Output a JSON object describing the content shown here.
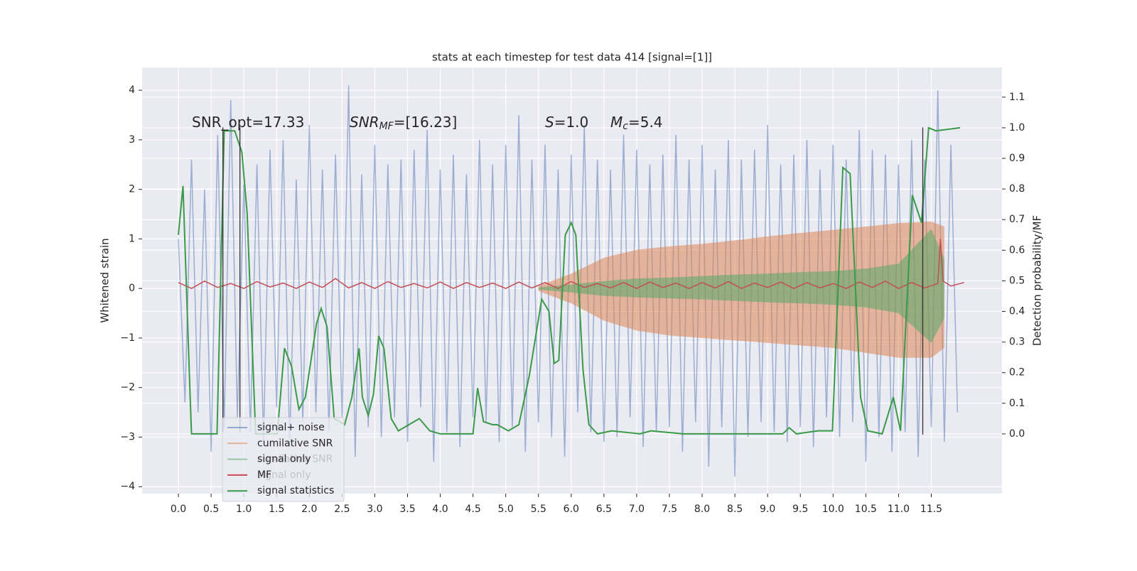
{
  "chart_data": {
    "type": "line",
    "title": "stats at each timestep for test data 414 [signal=[1]]",
    "y_label": "Whitened strain",
    "y2_label": "Detection probability/MF",
    "annotations": [
      [
        "SNR_opt=17.33"
      ],
      [
        "SNR",
        "MF",
        "=[16.23]"
      ],
      [
        "S",
        "=1.0"
      ],
      [
        "M",
        "c",
        "=5.4"
      ]
    ],
    "xlim": [
      -0.554,
      12.58
    ],
    "ylim": [
      -4.14,
      4.46
    ],
    "y2lim": [
      -0.195,
      1.197
    ],
    "grid": true,
    "legend": "lower left",
    "xticks": [
      {
        "value": 0,
        "label": "0.0"
      },
      0.5,
      {
        "value": 1,
        "label": "1.0"
      },
      1.5,
      {
        "value": 2,
        "label": "2.0"
      },
      2.5,
      {
        "value": 3,
        "label": "3.0"
      },
      3.5,
      {
        "value": 4,
        "label": "4.0"
      },
      4.5,
      {
        "value": 5,
        "label": "5.0"
      },
      5.5,
      {
        "value": 6,
        "label": "6.0"
      },
      6.5,
      {
        "value": 7,
        "label": "7.0"
      },
      7.5,
      {
        "value": 8,
        "label": "8.0"
      },
      8.5,
      {
        "value": 9,
        "label": "9.0"
      },
      9.5,
      {
        "value": 10,
        "label": "10.0"
      },
      10.5,
      {
        "value": 11,
        "label": "11.0"
      },
      11.5
    ],
    "yticks": [
      {
        "value": -4,
        "label": "−4"
      },
      {
        "value": -3,
        "label": "−3"
      },
      {
        "value": -2,
        "label": "−2"
      },
      {
        "value": -1,
        "label": "−1"
      },
      0,
      1,
      2,
      3,
      4
    ],
    "y2ticks": [
      {
        "value": 0,
        "label": "0.0"
      },
      0.1,
      0.2,
      0.3,
      0.4,
      0.5,
      0.6,
      0.7,
      0.8,
      0.9,
      {
        "value": 1,
        "label": "1.0"
      },
      1.1
    ],
    "ghost_legend": [
      "cumilative SNR",
      "signal only"
    ],
    "markers": [
      {
        "x": 0.68,
        "ymin": -2.9,
        "ymax": 3.25
      },
      {
        "x": 0.94,
        "ymin": -2.9,
        "ymax": 3.25
      },
      {
        "x": 11.37,
        "ymin": -2.95,
        "ymax": 3.25
      }
    ],
    "series": [
      {
        "name": "signal+ noise",
        "kind": "line",
        "color": "#4c72b0",
        "x": [
          0,
          0.1,
          0.2,
          0.3,
          0.4,
          0.5,
          0.6,
          0.7,
          0.8,
          0.9,
          1,
          1.1,
          1.2,
          1.3,
          1.4,
          1.5,
          1.6,
          1.7,
          1.8,
          1.9,
          2,
          2.1,
          2.2,
          2.3,
          2.4,
          2.5,
          2.6,
          2.7,
          2.8,
          2.9,
          3,
          3.1,
          3.2,
          3.3,
          3.4,
          3.5,
          3.6,
          3.7,
          3.8,
          3.9,
          4,
          4.1,
          4.2,
          4.3,
          4.4,
          4.5,
          4.6,
          4.7,
          4.8,
          4.9,
          5,
          5.1,
          5.2,
          5.3,
          5.4,
          5.5,
          5.6,
          5.7,
          5.8,
          5.9,
          6,
          6.1,
          6.2,
          6.3,
          6.4,
          6.5,
          6.6,
          6.7,
          6.8,
          6.9,
          7,
          7.1,
          7.2,
          7.3,
          7.4,
          7.5,
          7.6,
          7.7,
          7.8,
          7.9,
          8,
          8.1,
          8.2,
          8.3,
          8.4,
          8.5,
          8.6,
          8.7,
          8.8,
          8.9,
          9,
          9.1,
          9.2,
          9.3,
          9.4,
          9.5,
          9.6,
          9.7,
          9.8,
          9.9,
          10,
          10.1,
          10.2,
          10.3,
          10.4,
          10.5,
          10.6,
          10.7,
          10.8,
          10.9,
          11,
          11.1,
          11.2,
          11.3,
          11.4,
          11.5,
          11.6,
          11.7,
          11.8,
          11.9
        ],
        "values": [
          1.0,
          -2.3,
          2.6,
          -2.5,
          2.0,
          -3.3,
          3.1,
          -2.8,
          3.8,
          -2.6,
          2.1,
          -2.9,
          2.5,
          -3.1,
          2.8,
          -2.4,
          3.0,
          -3.2,
          2.2,
          -2.7,
          3.3,
          -2.5,
          2.4,
          -2.9,
          2.7,
          -2.6,
          4.1,
          -3.4,
          2.3,
          -2.8,
          2.9,
          -3.0,
          2.5,
          -2.6,
          2.6,
          -3.1,
          2.8,
          -2.4,
          3.2,
          -3.5,
          2.4,
          -2.9,
          2.7,
          -3.2,
          2.3,
          -2.6,
          3.0,
          -2.7,
          2.5,
          -3.1,
          2.9,
          -2.8,
          3.5,
          -3.3,
          2.6,
          -2.7,
          2.9,
          -3.0,
          2.4,
          -3.4,
          2.7,
          -2.5,
          3.3,
          -2.9,
          2.6,
          -3.1,
          2.4,
          -3.0,
          3.1,
          -2.6,
          2.8,
          -3.2,
          2.5,
          -2.9,
          2.7,
          -2.8,
          3.1,
          -3.3,
          2.6,
          -2.7,
          2.9,
          -3.6,
          2.4,
          -2.8,
          3.0,
          -3.8,
          2.6,
          -3.0,
          2.8,
          -2.7,
          3.3,
          -2.9,
          2.5,
          -3.1,
          2.7,
          -2.8,
          3.0,
          -3.2,
          2.4,
          -2.6,
          2.9,
          -3.0,
          2.6,
          -2.7,
          3.2,
          -3.5,
          2.8,
          -3.0,
          2.7,
          -3.3,
          2.5,
          -2.9,
          3.0,
          -3.4,
          2.6,
          -2.8,
          4.0,
          -3.1,
          2.9,
          -2.5
        ]
      },
      {
        "name": "cumilative SNR",
        "kind": "band",
        "color": "#dd8452",
        "x": [
          5.5,
          6,
          6.5,
          7,
          7.5,
          8,
          8.5,
          9,
          9.5,
          10,
          10.5,
          11,
          11.5,
          11.7
        ],
        "values": [
          0.05,
          0.3,
          0.62,
          0.78,
          0.85,
          0.9,
          0.97,
          1.05,
          1.12,
          1.18,
          1.25,
          1.32,
          1.35,
          1.25
        ],
        "lower": [
          -0.05,
          -0.3,
          -0.65,
          -0.85,
          -0.95,
          -1.0,
          -1.05,
          -1.1,
          -1.15,
          -1.2,
          -1.3,
          -1.4,
          -1.4,
          -1.2
        ]
      },
      {
        "name": "signal only",
        "kind": "band",
        "color": "#55a868",
        "x": [
          5.5,
          6,
          6.5,
          7,
          7.5,
          8,
          8.5,
          9,
          9.5,
          10,
          10.5,
          11,
          11.5,
          11.7
        ],
        "values": [
          0.02,
          0.08,
          0.15,
          0.2,
          0.22,
          0.25,
          0.28,
          0.3,
          0.33,
          0.35,
          0.4,
          0.5,
          1.2,
          0.6
        ],
        "lower": [
          -0.02,
          -0.08,
          -0.15,
          -0.18,
          -0.2,
          -0.22,
          -0.25,
          -0.28,
          -0.3,
          -0.33,
          -0.38,
          -0.5,
          -1.1,
          -0.6
        ]
      },
      {
        "name": "MF",
        "kind": "line",
        "color": "#c44e52",
        "x": [
          0,
          0.2,
          0.4,
          0.6,
          0.8,
          1,
          1.2,
          1.4,
          1.6,
          1.8,
          2,
          2.2,
          2.4,
          2.6,
          2.8,
          3,
          3.2,
          3.4,
          3.6,
          3.8,
          4,
          4.2,
          4.4,
          4.6,
          4.8,
          5,
          5.2,
          5.4,
          5.6,
          5.8,
          6,
          6.2,
          6.4,
          6.6,
          6.8,
          7,
          7.2,
          7.4,
          7.6,
          7.8,
          8,
          8.2,
          8.4,
          8.6,
          8.8,
          9,
          9.2,
          9.4,
          9.6,
          9.8,
          10,
          10.2,
          10.4,
          10.6,
          10.8,
          11,
          11.2,
          11.4,
          11.6,
          11.64,
          11.68,
          11.8,
          12
        ],
        "values": [
          0.12,
          0.0,
          0.15,
          0.02,
          0.1,
          0.0,
          0.14,
          0.03,
          0.11,
          0.0,
          0.13,
          0.02,
          0.2,
          0.01,
          0.12,
          0.0,
          0.14,
          0.02,
          0.1,
          0.01,
          0.13,
          0.0,
          0.12,
          0.02,
          0.11,
          0.0,
          0.13,
          0.01,
          0.12,
          0.0,
          0.14,
          0.02,
          0.1,
          0.01,
          0.12,
          0.0,
          0.13,
          0.02,
          0.11,
          0.0,
          0.12,
          0.01,
          0.14,
          0.0,
          0.11,
          0.02,
          0.13,
          0.0,
          0.12,
          0.01,
          0.1,
          0.0,
          0.13,
          0.02,
          0.15,
          0.0,
          0.12,
          0.01,
          0.1,
          1.0,
          0.15,
          0.05,
          0.12
        ]
      },
      {
        "name": "signal statistics",
        "kind": "line",
        "axis": "y2",
        "color": "#3a9a48",
        "x": [
          0,
          0.07,
          0.18,
          0.2,
          0.59,
          0.7,
          0.86,
          0.97,
          1.05,
          1.18,
          1.51,
          1.62,
          1.73,
          1.84,
          1.94,
          2.11,
          2.18,
          2.27,
          2.38,
          2.54,
          2.65,
          2.76,
          2.81,
          2.9,
          2.98,
          3.06,
          3.14,
          3.25,
          3.36,
          3.52,
          3.68,
          3.84,
          4.0,
          4.28,
          4.5,
          4.57,
          4.66,
          4.8,
          4.87,
          5.04,
          5.2,
          5.36,
          5.55,
          5.66,
          5.74,
          5.81,
          5.91,
          6.0,
          6.07,
          6.18,
          6.27,
          6.4,
          6.62,
          7.05,
          7.22,
          7.71,
          9.23,
          9.33,
          9.44,
          9.77,
          9.99,
          10.15,
          10.26,
          10.42,
          10.53,
          10.75,
          10.92,
          11.03,
          11.21,
          11.35,
          11.46,
          11.57,
          11.94
        ],
        "values": [
          0.65,
          0.81,
          0.12,
          0.0,
          0.0,
          0.99,
          0.99,
          0.92,
          0.72,
          0.0,
          0.0,
          0.28,
          0.22,
          0.08,
          0.12,
          0.36,
          0.41,
          0.35,
          0.05,
          0.03,
          0.12,
          0.28,
          0.12,
          0.06,
          0.13,
          0.32,
          0.28,
          0.05,
          0.01,
          0.03,
          0.05,
          0.01,
          0.0,
          0.0,
          0.0,
          0.15,
          0.04,
          0.03,
          0.03,
          0.01,
          0.03,
          0.19,
          0.44,
          0.4,
          0.23,
          0.24,
          0.65,
          0.69,
          0.65,
          0.21,
          0.03,
          0.0,
          0.01,
          0.0,
          0.01,
          0.0,
          0.0,
          0.02,
          0.0,
          0.01,
          0.01,
          0.87,
          0.85,
          0.12,
          0.01,
          0.0,
          0.12,
          0.01,
          0.78,
          0.69,
          1.0,
          0.99,
          1.0
        ]
      }
    ]
  }
}
